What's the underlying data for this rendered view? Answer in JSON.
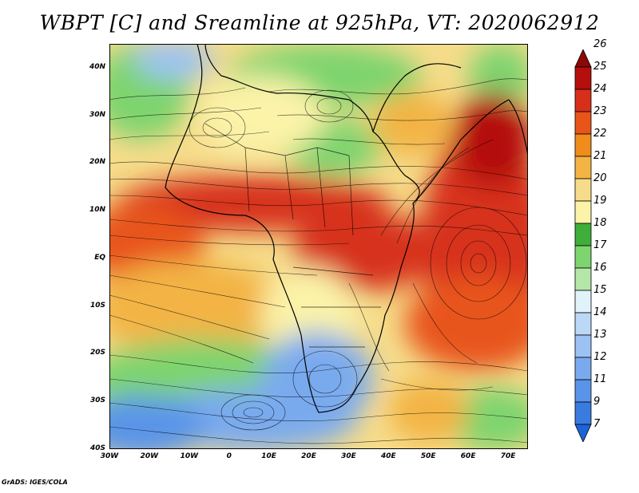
{
  "title": "WBPT [C] and Sreamline at 925hPa, VT: 2020062912",
  "credit": "GrADS: IGES/COLA",
  "map": {
    "lon_range": [
      -30,
      75
    ],
    "lat_range": [
      -40,
      45
    ],
    "lat_ticks": [
      {
        "value": 40,
        "label": "40N"
      },
      {
        "value": 30,
        "label": "30N"
      },
      {
        "value": 20,
        "label": "20N"
      },
      {
        "value": 10,
        "label": "10N"
      },
      {
        "value": 0,
        "label": "EQ"
      },
      {
        "value": -10,
        "label": "10S"
      },
      {
        "value": -20,
        "label": "20S"
      },
      {
        "value": -30,
        "label": "30S"
      },
      {
        "value": -40,
        "label": "40S"
      }
    ],
    "lon_ticks": [
      {
        "value": -30,
        "label": "30W"
      },
      {
        "value": -20,
        "label": "20W"
      },
      {
        "value": -10,
        "label": "10W"
      },
      {
        "value": 0,
        "label": "0"
      },
      {
        "value": 10,
        "label": "10E"
      },
      {
        "value": 20,
        "label": "20E"
      },
      {
        "value": 30,
        "label": "30E"
      },
      {
        "value": 40,
        "label": "40E"
      },
      {
        "value": 50,
        "label": "50E"
      },
      {
        "value": 60,
        "label": "60E"
      },
      {
        "value": 70,
        "label": "70E"
      }
    ]
  },
  "colorbar": {
    "levels": [
      "7",
      "9",
      "11",
      "12",
      "13",
      "14",
      "15",
      "16",
      "17",
      "18",
      "19",
      "20",
      "21",
      "22",
      "23",
      "24",
      "25",
      "26"
    ],
    "colors": [
      "#1e64d6",
      "#3a7be0",
      "#5a94e8",
      "#7aaaee",
      "#9cc2f3",
      "#bcd8f7",
      "#e1f2fb",
      "#b4e6a8",
      "#7ed46e",
      "#3fae3a",
      "#fbf3a8",
      "#f6dc8a",
      "#f3b445",
      "#ef8c1c",
      "#e8541a",
      "#d7301a",
      "#b40f0c",
      "#8a0a08"
    ]
  }
}
